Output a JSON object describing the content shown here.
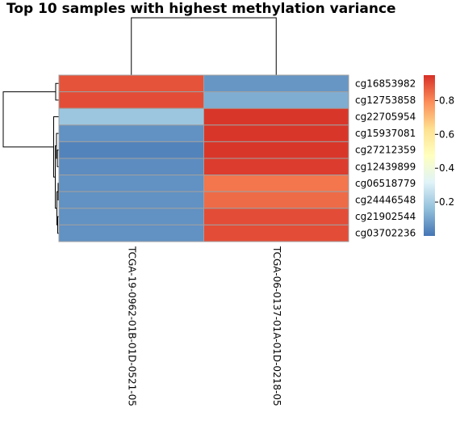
{
  "chart_data": {
    "type": "heatmap",
    "title": "Top 10 samples with highest methylation variance",
    "rows": [
      "cg16853982",
      "cg12753858",
      "cg22705954",
      "cg15937081",
      "cg27212359",
      "cg12439899",
      "cg06518779",
      "cg24446548",
      "cg21902544",
      "cg03702236"
    ],
    "columns": [
      "TCGA-19-0962-01B-01D-0521-05",
      "TCGA-06-0137-01A-01D-0218-05"
    ],
    "values": [
      [
        0.89,
        0.07
      ],
      [
        0.9,
        0.12
      ],
      [
        0.18,
        0.94
      ],
      [
        0.06,
        0.94
      ],
      [
        0.03,
        0.94
      ],
      [
        0.05,
        0.93
      ],
      [
        0.06,
        0.83
      ],
      [
        0.06,
        0.85
      ],
      [
        0.06,
        0.9
      ],
      [
        0.06,
        0.9
      ]
    ],
    "colorbar": {
      "min": 0.0,
      "max": 0.95,
      "ticks": [
        0.2,
        0.4,
        0.6,
        0.8
      ],
      "tick_labels": [
        "0.2",
        "0.4",
        "0.6",
        "0.8"
      ],
      "colors": [
        "#4575b4",
        "#91bfdb",
        "#e0f3f8",
        "#ffffbf",
        "#fee090",
        "#fc8d59",
        "#d73027"
      ]
    },
    "row_clustering": true,
    "column_clustering": true
  }
}
